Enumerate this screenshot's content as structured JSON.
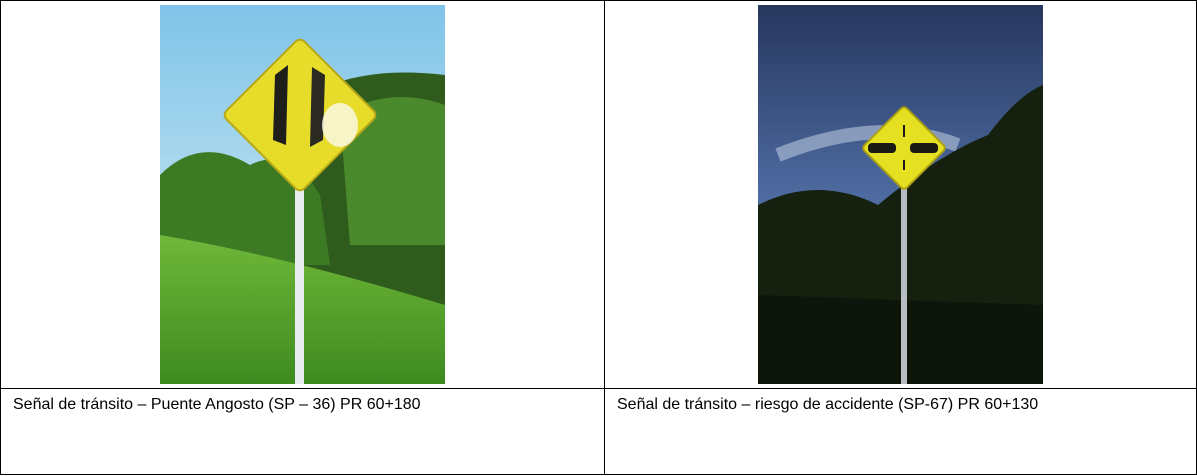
{
  "table": {
    "rows": [
      [
        "Señal de tránsito – Puente Angosto (SP – 36) PR 60+180",
        "Señal de tránsito – riesgo de accidente (SP-67) PR 60+130"
      ]
    ]
  }
}
